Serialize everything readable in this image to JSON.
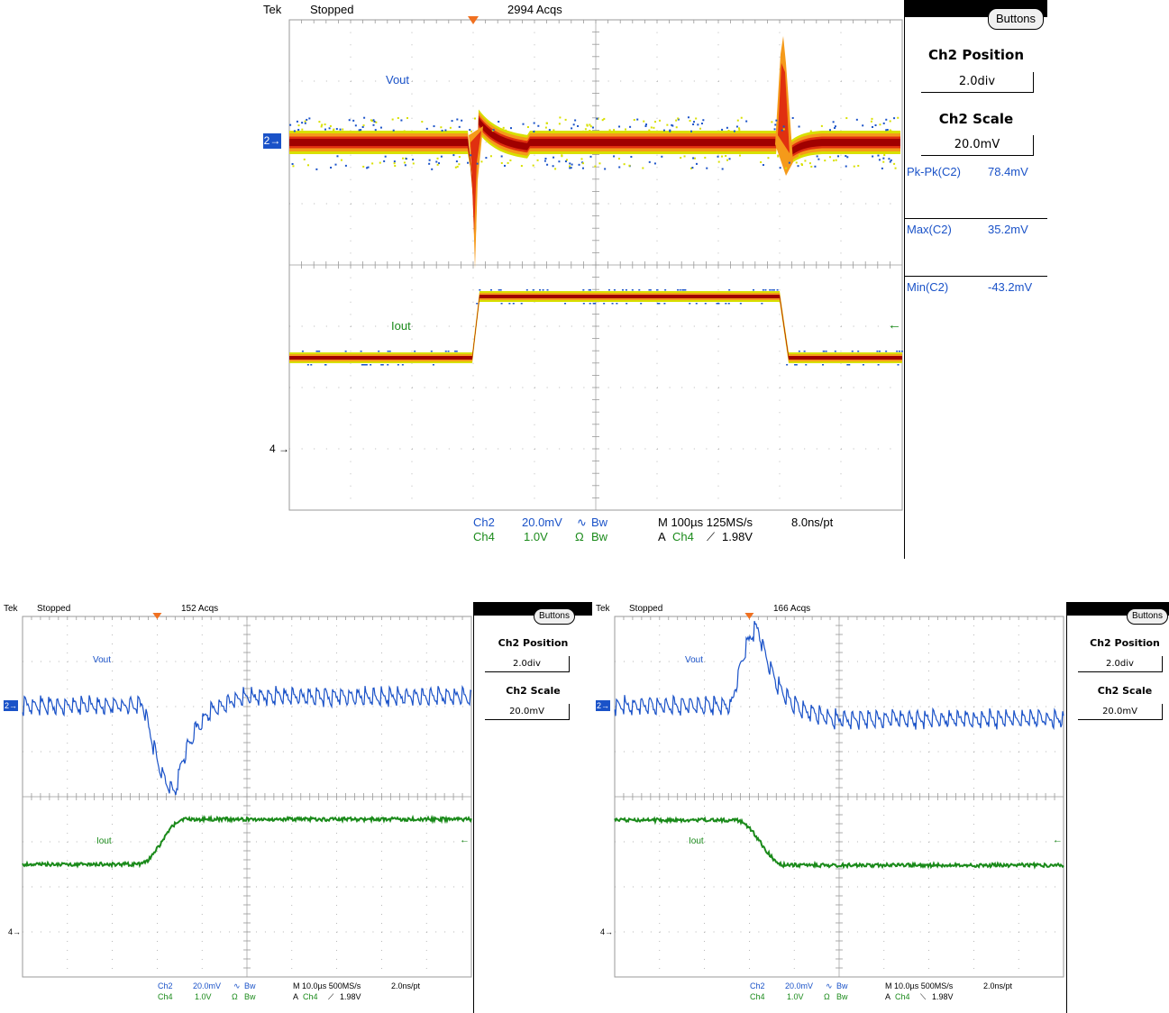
{
  "scopes": [
    {
      "id": "top",
      "header": {
        "brand": "Tek",
        "status": "Stopped",
        "acqs": "2994 Acqs"
      },
      "menu": {
        "button_label": "Buttons",
        "pos_title": "Ch2 Position",
        "pos_value": "2.0div",
        "scale_title": "Ch2 Scale",
        "scale_value": "20.0mV"
      },
      "measurements": [
        {
          "label": "Pk-Pk(C2)",
          "value": "78.4mV"
        },
        {
          "label": "Max(C2)",
          "value": "35.2mV"
        },
        {
          "label": "Min(C2)",
          "value": "-43.2mV"
        }
      ],
      "trace_labels": {
        "vout": "Vout",
        "iout": "Iout"
      },
      "markers": {
        "ch2": "2",
        "ch4": "4"
      },
      "readout": {
        "ch2_name": "Ch2",
        "ch2_scale": "20.0mV",
        "ch2_coupling": "∿",
        "ch2_bw": "Bw",
        "ch4_name": "Ch4",
        "ch4_scale": "1.0V",
        "ch4_coupling": "Ω",
        "ch4_bw": "Bw",
        "timebase": "M 100µs 125MS/s",
        "resolution": "8.0ns/pt",
        "trigger_mode": "A",
        "trigger_source": "Ch4",
        "trigger_slope": "⟋",
        "trigger_level": "1.98V"
      },
      "waveform": {
        "style": "persistence",
        "event": "load step up then down",
        "vout_step_up_min_mV": -43.2,
        "vout_step_down_max_mV": 35.2,
        "vout_pkpk_mV": 78.4
      }
    },
    {
      "id": "bottom-left",
      "header": {
        "brand": "Tek",
        "status": "Stopped",
        "acqs": "152 Acqs"
      },
      "menu": {
        "button_label": "Buttons",
        "pos_title": "Ch2 Position",
        "pos_value": "2.0div",
        "scale_title": "Ch2 Scale",
        "scale_value": "20.0mV"
      },
      "trace_labels": {
        "vout": "Vout",
        "iout": "Iout"
      },
      "markers": {
        "ch2": "2",
        "ch4": "4"
      },
      "readout": {
        "ch2_name": "Ch2",
        "ch2_scale": "20.0mV",
        "ch2_coupling": "∿",
        "ch2_bw": "Bw",
        "ch4_name": "Ch4",
        "ch4_scale": "1.0V",
        "ch4_coupling": "Ω",
        "ch4_bw": "Bw",
        "timebase": "M 10.0µs 500MS/s",
        "resolution": "2.0ns/pt",
        "trigger_mode": "A",
        "trigger_source": "Ch4",
        "trigger_slope": "⟋",
        "trigger_level": "1.98V"
      },
      "waveform": {
        "style": "single",
        "event": "load step up",
        "direction": "down"
      }
    },
    {
      "id": "bottom-right",
      "header": {
        "brand": "Tek",
        "status": "Stopped",
        "acqs": "166 Acqs"
      },
      "menu": {
        "button_label": "Buttons",
        "pos_title": "Ch2 Position",
        "pos_value": "2.0div",
        "scale_title": "Ch2 Scale",
        "scale_value": "20.0mV"
      },
      "trace_labels": {
        "vout": "Vout",
        "iout": "Iout"
      },
      "markers": {
        "ch2": "2",
        "ch4": "4"
      },
      "readout": {
        "ch2_name": "Ch2",
        "ch2_scale": "20.0mV",
        "ch2_coupling": "∿",
        "ch2_bw": "Bw",
        "ch4_name": "Ch4",
        "ch4_scale": "1.0V",
        "ch4_coupling": "Ω",
        "ch4_bw": "Bw",
        "timebase": "M 10.0µs 500MS/s",
        "resolution": "2.0ns/pt",
        "trigger_mode": "A",
        "trigger_source": "Ch4",
        "trigger_slope": "⟍",
        "trigger_level": "1.98V"
      },
      "waveform": {
        "style": "single",
        "event": "load step down",
        "direction": "up"
      }
    }
  ],
  "chart_data": [
    {
      "type": "line",
      "title": "",
      "series": [
        {
          "name": "Vout",
          "values": []
        },
        {
          "name": "Iout",
          "values": []
        }
      ],
      "xlabel": "",
      "ylabel": "",
      "grid": true,
      "annotations": [
        "Pk-Pk(C2) 78.4mV",
        "Max(C2) 35.2mV",
        "Min(C2) -43.2mV"
      ]
    },
    {
      "type": "line",
      "title": "",
      "series": [
        {
          "name": "Vout",
          "values": []
        },
        {
          "name": "Iout",
          "values": []
        }
      ],
      "grid": true
    },
    {
      "type": "line",
      "title": "",
      "series": [
        {
          "name": "Vout",
          "values": []
        },
        {
          "name": "Iout",
          "values": []
        }
      ],
      "grid": true
    }
  ],
  "colors": {
    "vout": "#1a52c8",
    "iout": "#1a8a1a",
    "persist_core": "#a00000",
    "persist_mid": "#e03010",
    "persist_outer": "#f59a1a",
    "persist_edge": "#d8e000",
    "grid": "#9a9a9a",
    "trigger": "#f07020"
  }
}
